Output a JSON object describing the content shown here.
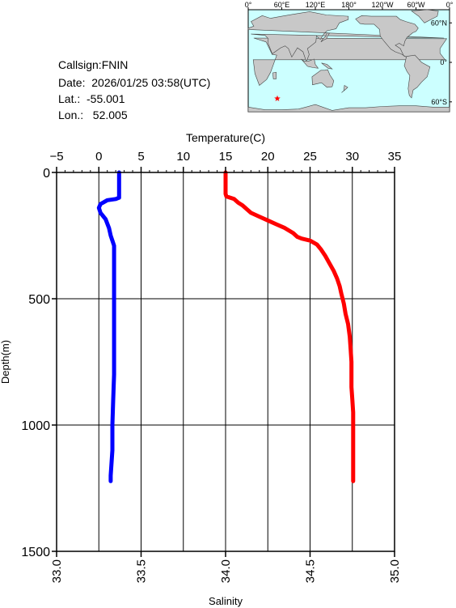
{
  "meta": {
    "callsign": "Callsign:FNIN",
    "date": "Date:  2026/01/25 03:58(UTC)",
    "lat": "Lat.:  -55.001",
    "lon": "Lon.:   52.005"
  },
  "map": {
    "top_ticks": [
      "0°",
      "60°E",
      "120°E",
      "180°",
      "120°W",
      "60°W",
      "0°"
    ],
    "right_ticks": [
      "60°N",
      "0°",
      "60°S"
    ],
    "ocean_color": "#ccffff",
    "land_color": "#c8c8c8",
    "marker": {
      "lat": -55.001,
      "lon": 52.005,
      "color": "#ff0000",
      "icon": "star-icon"
    }
  },
  "chart_data": {
    "type": "line",
    "y_axis": {
      "label": "Depth(m)",
      "range": [
        0,
        1500
      ],
      "ticks": [
        0,
        500,
        1000,
        1500
      ],
      "inverted": true
    },
    "x_top": {
      "label": "Temperature(C)",
      "range": [
        -5,
        35
      ],
      "ticks": [
        -5,
        0,
        5,
        10,
        15,
        20,
        25,
        30,
        35
      ]
    },
    "x_bottom": {
      "label": "Salinity",
      "range": [
        33.0,
        35.0
      ],
      "ticks": [
        "33.0",
        "33.5",
        "34.0",
        "34.5",
        "35.0"
      ]
    },
    "grid": true,
    "series": [
      {
        "axis": "temperature",
        "color": "#ff0000",
        "points": [
          [
            15.0,
            0
          ],
          [
            15.0,
            40
          ],
          [
            15.0,
            85
          ],
          [
            15.1,
            95
          ],
          [
            16.0,
            105
          ],
          [
            16.5,
            120
          ],
          [
            17.0,
            130
          ],
          [
            17.5,
            145
          ],
          [
            18.0,
            160
          ],
          [
            19.0,
            175
          ],
          [
            20.0,
            190
          ],
          [
            21.0,
            205
          ],
          [
            22.0,
            220
          ],
          [
            23.0,
            240
          ],
          [
            23.5,
            255
          ],
          [
            24.0,
            262
          ],
          [
            25.0,
            270
          ],
          [
            25.8,
            285
          ],
          [
            26.3,
            305
          ],
          [
            26.8,
            330
          ],
          [
            27.3,
            360
          ],
          [
            27.8,
            390
          ],
          [
            28.2,
            420
          ],
          [
            28.5,
            450
          ],
          [
            28.7,
            480
          ],
          [
            29.0,
            520
          ],
          [
            29.2,
            560
          ],
          [
            29.5,
            600
          ],
          [
            29.7,
            650
          ],
          [
            29.8,
            700
          ],
          [
            29.9,
            750
          ],
          [
            29.9,
            800
          ],
          [
            29.9,
            850
          ],
          [
            30.0,
            900
          ],
          [
            30.1,
            950
          ],
          [
            30.1,
            1000
          ],
          [
            30.1,
            1050
          ],
          [
            30.1,
            1100
          ],
          [
            30.1,
            1150
          ],
          [
            30.1,
            1222
          ]
        ]
      },
      {
        "axis": "salinity",
        "color": "#0000ff",
        "points": [
          [
            33.37,
            0
          ],
          [
            33.37,
            40
          ],
          [
            33.37,
            100
          ],
          [
            33.35,
            105
          ],
          [
            33.3,
            110
          ],
          [
            33.26,
            125
          ],
          [
            33.25,
            140
          ],
          [
            33.26,
            160
          ],
          [
            33.29,
            185
          ],
          [
            33.31,
            220
          ],
          [
            33.32,
            250
          ],
          [
            33.33,
            270
          ],
          [
            33.34,
            290
          ],
          [
            33.34,
            330
          ],
          [
            33.34,
            400
          ],
          [
            33.34,
            500
          ],
          [
            33.34,
            600
          ],
          [
            33.34,
            700
          ],
          [
            33.34,
            800
          ],
          [
            33.335,
            900
          ],
          [
            33.33,
            1000
          ],
          [
            33.33,
            1100
          ],
          [
            33.32,
            1200
          ],
          [
            33.32,
            1222
          ]
        ]
      }
    ]
  }
}
